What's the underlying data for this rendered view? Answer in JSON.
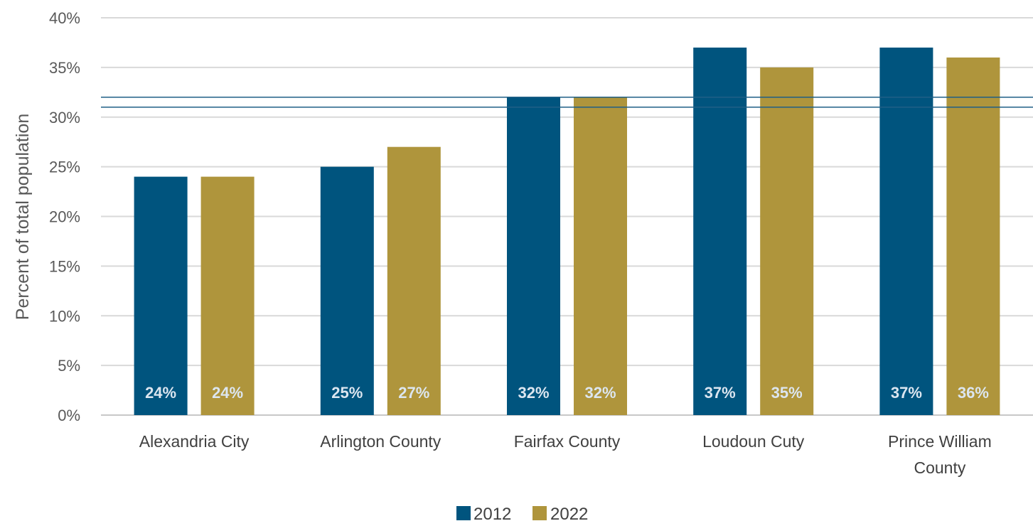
{
  "chart_data": {
    "type": "bar",
    "ylabel": "Percent of total population",
    "ylim": [
      0,
      40
    ],
    "yticks": [
      0,
      5,
      10,
      15,
      20,
      25,
      30,
      35,
      40
    ],
    "ytick_labels": [
      "0%",
      "5%",
      "10%",
      "15%",
      "20%",
      "25%",
      "30%",
      "35%",
      "40%"
    ],
    "grid": true,
    "legend_position": "bottom",
    "categories": [
      [
        "Alexandria City"
      ],
      [
        "Arlington County"
      ],
      [
        "Fairfax County"
      ],
      [
        "Loudoun Cuty"
      ],
      [
        "Prince William",
        "County"
      ]
    ],
    "series": [
      {
        "name": "2012",
        "color": "#00547e",
        "values": [
          24,
          25,
          32,
          37,
          37
        ],
        "labels": [
          "24%",
          "25%",
          "32%",
          "37%",
          "37%"
        ]
      },
      {
        "name": "2022",
        "color": "#af953c",
        "values": [
          24,
          27,
          32,
          35,
          36
        ],
        "labels": [
          "24%",
          "27%",
          "32%",
          "35%",
          "36%"
        ]
      }
    ],
    "reference_lines": [
      {
        "value": 32,
        "color": "#1f5f86"
      },
      {
        "value": 31,
        "color": "#1f5f86"
      }
    ]
  }
}
